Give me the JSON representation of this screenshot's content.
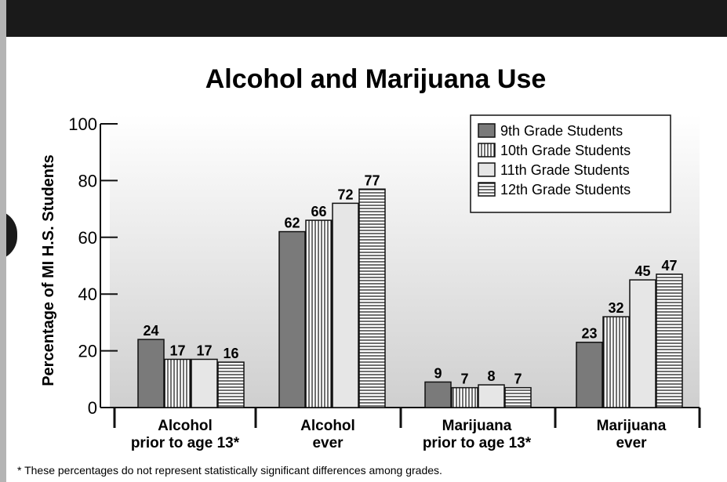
{
  "chart_data": {
    "type": "bar",
    "title": "Alcohol and Marijuana Use",
    "ylabel": "Percentage of MI H.S. Students",
    "xlabel": "",
    "ylim": [
      0,
      100
    ],
    "yticks": [
      0,
      20,
      40,
      60,
      80,
      100
    ],
    "grid": false,
    "legend_position": "top-right",
    "categories": [
      [
        "Alcohol",
        "prior to age 13*"
      ],
      [
        "Alcohol",
        "ever"
      ],
      [
        "Marijuana",
        "prior to age 13*"
      ],
      [
        "Marijuana",
        "ever"
      ]
    ],
    "series": [
      {
        "name": "9th Grade Students",
        "pattern": "solid",
        "color": "#7a7a7a",
        "values": [
          24,
          62,
          9,
          23
        ]
      },
      {
        "name": "10th Grade Students",
        "pattern": "vertical-stripes",
        "color": "#ffffff",
        "values": [
          17,
          66,
          7,
          32
        ]
      },
      {
        "name": "11th Grade Students",
        "pattern": "light",
        "color": "#e6e6e6",
        "values": [
          17,
          72,
          8,
          45
        ]
      },
      {
        "name": "12th Grade Students",
        "pattern": "horizontal-stripes",
        "color": "#ffffff",
        "values": [
          16,
          77,
          7,
          47
        ]
      }
    ]
  },
  "footnote": "*  These percentages do not represent statistically significant differences among grades."
}
